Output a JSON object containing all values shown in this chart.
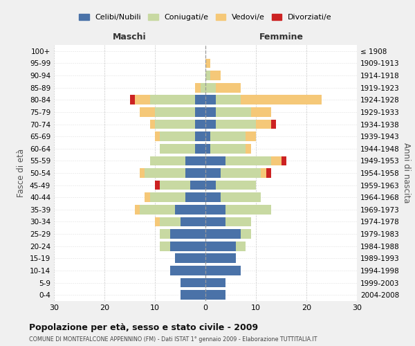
{
  "age_groups": [
    "0-4",
    "5-9",
    "10-14",
    "15-19",
    "20-24",
    "25-29",
    "30-34",
    "35-39",
    "40-44",
    "45-49",
    "50-54",
    "55-59",
    "60-64",
    "65-69",
    "70-74",
    "75-79",
    "80-84",
    "85-89",
    "90-94",
    "95-99",
    "100+"
  ],
  "birth_years": [
    "2004-2008",
    "1999-2003",
    "1994-1998",
    "1989-1993",
    "1984-1988",
    "1979-1983",
    "1974-1978",
    "1969-1973",
    "1964-1968",
    "1959-1963",
    "1954-1958",
    "1949-1953",
    "1944-1948",
    "1939-1943",
    "1934-1938",
    "1929-1933",
    "1924-1928",
    "1919-1923",
    "1914-1918",
    "1909-1913",
    "≤ 1908"
  ],
  "males": {
    "celibi": [
      5,
      5,
      7,
      6,
      7,
      7,
      5,
      6,
      4,
      3,
      4,
      4,
      2,
      2,
      2,
      2,
      2,
      0,
      0,
      0,
      0
    ],
    "coniugati": [
      0,
      0,
      0,
      0,
      2,
      2,
      4,
      7,
      7,
      6,
      8,
      7,
      7,
      7,
      8,
      8,
      9,
      1,
      0,
      0,
      0
    ],
    "vedovi": [
      0,
      0,
      0,
      0,
      0,
      0,
      1,
      1,
      1,
      0,
      1,
      0,
      0,
      1,
      1,
      3,
      3,
      1,
      0,
      0,
      0
    ],
    "divorziati": [
      0,
      0,
      0,
      0,
      0,
      0,
      0,
      0,
      0,
      1,
      0,
      0,
      0,
      0,
      0,
      0,
      1,
      0,
      0,
      0,
      0
    ]
  },
  "females": {
    "nubili": [
      4,
      4,
      7,
      6,
      6,
      7,
      4,
      4,
      3,
      2,
      3,
      4,
      1,
      1,
      2,
      2,
      2,
      0,
      0,
      0,
      0
    ],
    "coniugate": [
      0,
      0,
      0,
      0,
      2,
      2,
      5,
      9,
      8,
      8,
      8,
      9,
      7,
      7,
      8,
      7,
      5,
      2,
      1,
      0,
      0
    ],
    "vedove": [
      0,
      0,
      0,
      0,
      0,
      0,
      0,
      0,
      0,
      0,
      1,
      2,
      1,
      2,
      3,
      4,
      16,
      5,
      2,
      1,
      0
    ],
    "divorziate": [
      0,
      0,
      0,
      0,
      0,
      0,
      0,
      0,
      0,
      0,
      1,
      1,
      0,
      0,
      1,
      0,
      0,
      0,
      0,
      0,
      0
    ]
  },
  "colors": {
    "celibi_nubili": "#4a72a8",
    "coniugati": "#c8d9a2",
    "vedovi": "#f5c878",
    "divorziati": "#cc2222"
  },
  "title": "Popolazione per età, sesso e stato civile - 2009",
  "subtitle": "COMUNE DI MONTEFALCONE APPENNINO (FM) - Dati ISTAT 1° gennaio 2009 - Elaborazione TUTTITALIA.IT",
  "xlabel_left": "Maschi",
  "xlabel_right": "Femmine",
  "ylabel_left": "Fasce di età",
  "ylabel_right": "Anni di nascita",
  "xlim": 30,
  "bg_color": "#f0f0f0",
  "plot_bg_color": "#ffffff",
  "legend_labels": [
    "Celibi/Nubili",
    "Coniugati/e",
    "Vedovi/e",
    "Divorziati/e"
  ]
}
